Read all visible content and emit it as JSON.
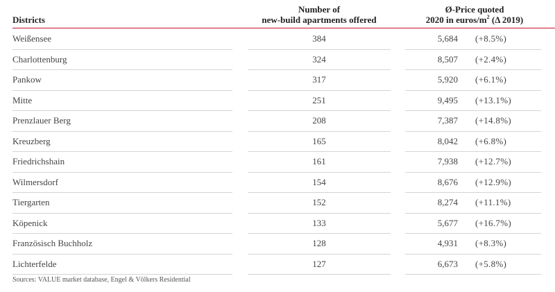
{
  "headers": {
    "district": "Districts",
    "count_line1": "Number of",
    "count_line2": "new-build apartments offered",
    "price_line1": "Ø-Price quoted",
    "price_line2_pre": "2020 in euros/m",
    "price_line2_sup": "2",
    "price_line2_post": " (Δ 2019)"
  },
  "rows": [
    {
      "district": "Weißensee",
      "count": "384",
      "price": "5,684",
      "delta": "(+8.5%)"
    },
    {
      "district": "Charlottenburg",
      "count": "324",
      "price": "8,507",
      "delta": "(+2.4%)"
    },
    {
      "district": "Pankow",
      "count": "317",
      "price": "5,920",
      "delta": "(+6.1%)"
    },
    {
      "district": "Mitte",
      "count": "251",
      "price": "9,495",
      "delta": "(+13.1%)"
    },
    {
      "district": "Prenzlauer Berg",
      "count": "208",
      "price": "7,387",
      "delta": "(+14.8%)"
    },
    {
      "district": "Kreuzberg",
      "count": "165",
      "price": "8,042",
      "delta": "(+6.8%)"
    },
    {
      "district": "Friedrichshain",
      "count": "161",
      "price": "7,938",
      "delta": "(+12.7%)"
    },
    {
      "district": "Wilmersdorf",
      "count": "154",
      "price": "8,676",
      "delta": "(+12.9%)"
    },
    {
      "district": "Tiergarten",
      "count": "152",
      "price": "8,274",
      "delta": "(+11.1%)"
    },
    {
      "district": "Köpenick",
      "count": "133",
      "price": "5,677",
      "delta": "(+16.7%)"
    },
    {
      "district": "Französisch Buchholz",
      "count": "128",
      "price": "4,931",
      "delta": "(+8.3%)"
    },
    {
      "district": "Lichterfelde",
      "count": "127",
      "price": "6,673",
      "delta": "(+5.8%)"
    }
  ],
  "source": "Sources: VALUE market database, Engel & Völkers Residential",
  "colors": {
    "header_rule": "#c8102e",
    "row_rule": "#d4d4d4",
    "text": "#444444"
  }
}
